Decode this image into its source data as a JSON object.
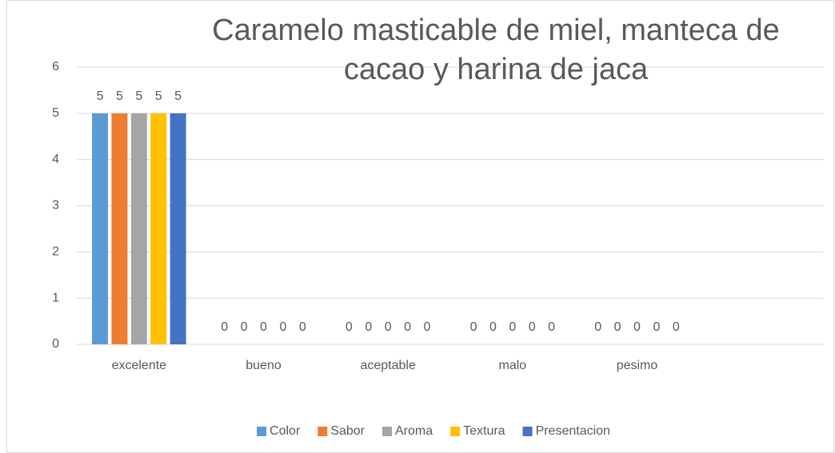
{
  "chart_data": {
    "type": "bar",
    "title": "Caramelo masticable de miel, manteca de cacao y harina de jaca",
    "categories": [
      "excelente",
      "bueno",
      "aceptable",
      "malo",
      "pesimo",
      null
    ],
    "series": [
      {
        "name": "Color",
        "color": "#5b9bd5",
        "values": [
          5,
          0,
          0,
          0,
          0,
          null
        ]
      },
      {
        "name": "Sabor",
        "color": "#ed7d31",
        "values": [
          5,
          0,
          0,
          0,
          0,
          null
        ]
      },
      {
        "name": "Aroma",
        "color": "#a5a5a5",
        "values": [
          5,
          0,
          0,
          0,
          0,
          null
        ]
      },
      {
        "name": "Textura",
        "color": "#ffc000",
        "values": [
          5,
          0,
          0,
          0,
          0,
          null
        ]
      },
      {
        "name": "Presentacion",
        "color": "#4472c4",
        "values": [
          5,
          0,
          0,
          0,
          0,
          null
        ]
      }
    ],
    "ylim": [
      0,
      6
    ],
    "yticks": [
      0,
      1,
      2,
      3,
      4,
      5,
      6
    ],
    "grid": true,
    "legend": "bottom"
  }
}
